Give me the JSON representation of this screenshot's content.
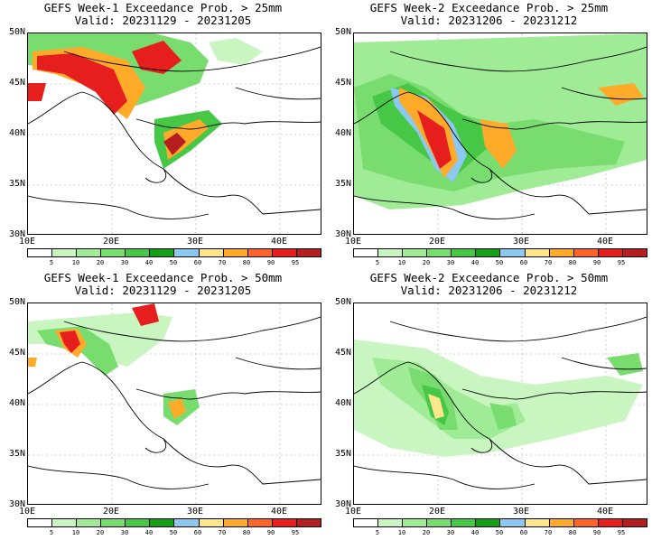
{
  "panels": [
    {
      "title": "GEFS Week-1 Exceedance Prob. > 25mm",
      "valid": "Valid: 20231129 - 20231205"
    },
    {
      "title": "GEFS Week-2 Exceedance Prob. > 25mm",
      "valid": "Valid: 20231206 - 20231212"
    },
    {
      "title": "GEFS Week-1 Exceedance Prob. > 50mm",
      "valid": "Valid: 20231129 - 20231205"
    },
    {
      "title": "GEFS Week-2 Exceedance Prob. > 50mm",
      "valid": "Valid: 20231206 - 20231212"
    }
  ],
  "lat_labels": [
    "50N",
    "45N",
    "40N",
    "35N",
    "30N"
  ],
  "lon_labels": [
    "10E",
    "20E",
    "30E",
    "40E"
  ],
  "colorbar": {
    "ticks": [
      "5",
      "10",
      "20",
      "30",
      "40",
      "50",
      "60",
      "70",
      "80",
      "90",
      "95"
    ],
    "colors": [
      "#ffffff",
      "#c8f5c0",
      "#a0eb96",
      "#78dc6e",
      "#46c846",
      "#14a014",
      "#8cc8f0",
      "#ffe68c",
      "#ffaa28",
      "#ff6428",
      "#e61e1e",
      "#b41e1e"
    ]
  }
}
